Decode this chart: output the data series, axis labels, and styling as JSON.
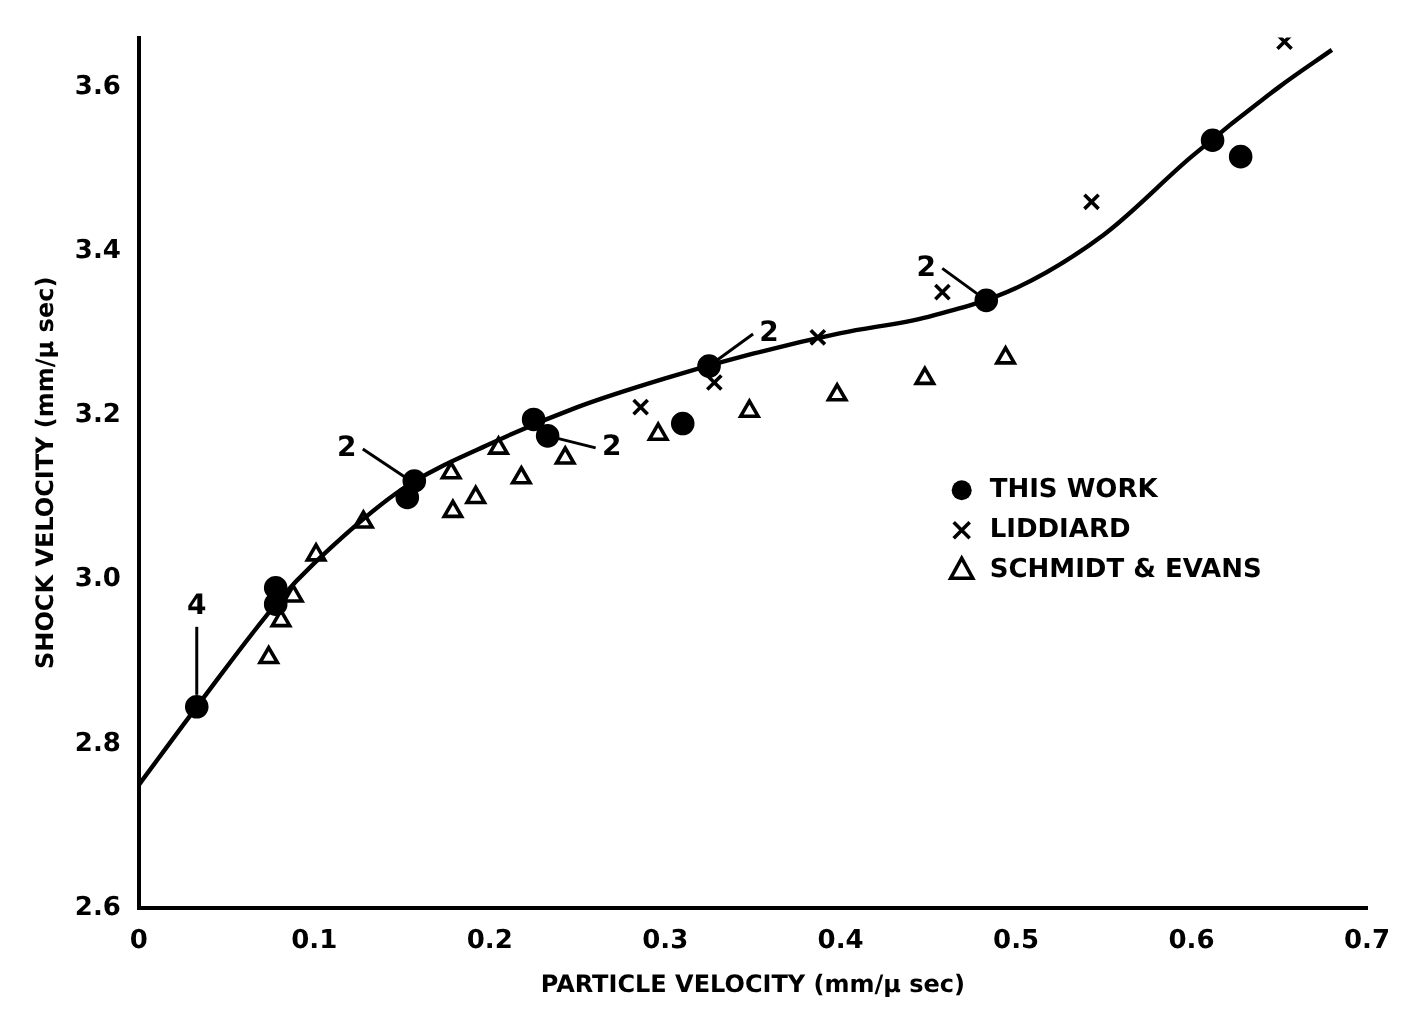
{
  "chart_data": {
    "type": "scatter",
    "xlabel": "PARTICLE VELOCITY (mm/μ sec)",
    "ylabel": "SHOCK VELOCITY (mm/μ sec)",
    "xlim": [
      0,
      0.7
    ],
    "xticks": [
      0,
      0.1,
      0.2,
      0.3,
      0.4,
      0.5,
      0.6,
      0.7
    ],
    "ylim": [
      2.6,
      3.66
    ],
    "yticks": [
      2.6,
      2.8,
      {
        "value": 3,
        "label": "3.0"
      },
      3.2,
      3.4,
      3.6
    ],
    "grid": false,
    "legend": "right",
    "series": [
      {
        "name": "THIS WORK",
        "marker": "circle",
        "color": "#000000",
        "x": [
          0.033,
          0.078,
          0.078,
          0.153,
          0.157,
          0.225,
          0.233,
          0.31,
          0.325,
          0.483,
          0.612,
          0.628
        ],
        "values": [
          2.845,
          2.97,
          2.99,
          3.1,
          3.12,
          3.195,
          3.175,
          3.19,
          3.26,
          3.34,
          3.535,
          3.515
        ]
      },
      {
        "name": "LIDDIARD",
        "marker": "cross",
        "color": "#000000",
        "x": [
          0.286,
          0.328,
          0.387,
          0.458,
          0.543,
          0.653
        ],
        "values": [
          3.21,
          3.24,
          3.295,
          3.35,
          3.46,
          3.655
        ]
      },
      {
        "name": "SCHMIDT & EVANS",
        "marker": "triangle",
        "color": "#000000",
        "x": [
          0.074,
          0.081,
          0.088,
          0.101,
          0.128,
          0.178,
          0.179,
          0.192,
          0.205,
          0.218,
          0.243,
          0.296,
          0.348,
          0.398,
          0.448,
          0.494
        ],
        "values": [
          2.905,
          2.95,
          2.98,
          3.03,
          3.07,
          3.13,
          3.083,
          3.1,
          3.16,
          3.124,
          3.148,
          3.177,
          3.205,
          3.225,
          3.245,
          3.27
        ]
      },
      {
        "type": "line",
        "marker": "none",
        "color": "#000000",
        "x": [
          0,
          0.033,
          0.08,
          0.1,
          0.15,
          0.2,
          0.25,
          0.3,
          0.35,
          0.4,
          0.45,
          0.5,
          0.55,
          0.6,
          0.65,
          0.68
        ],
        "values": [
          2.75,
          2.845,
          2.975,
          3.02,
          3.11,
          3.165,
          3.21,
          3.245,
          3.275,
          3.3,
          3.32,
          3.355,
          3.42,
          3.515,
          3.6,
          3.645
        ]
      }
    ],
    "annotations": [
      {
        "text": "4",
        "x": 0.033,
        "y": 2.845
      },
      {
        "text": "2",
        "x": 0.155,
        "y": 3.12
      },
      {
        "text": "2",
        "x": 0.233,
        "y": 3.175
      },
      {
        "text": "2",
        "x": 0.325,
        "y": 3.26
      },
      {
        "text": "2",
        "x": 0.483,
        "y": 3.34
      }
    ]
  }
}
